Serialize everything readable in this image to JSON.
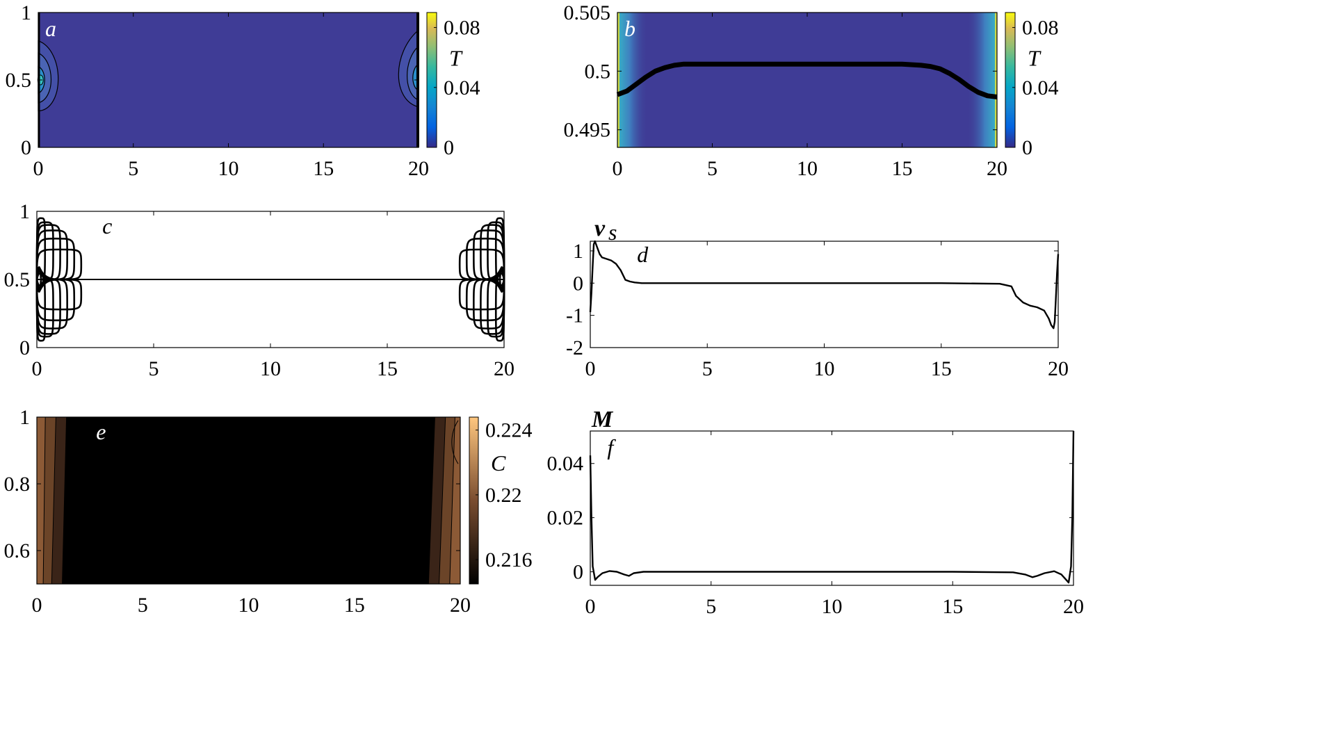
{
  "chart_data": [
    {
      "panel": "a",
      "type": "heatmap",
      "xlim": [
        0,
        20
      ],
      "ylim": [
        0,
        1
      ],
      "xticks": [
        0,
        5,
        10,
        15,
        20
      ],
      "yticks": [
        0,
        0.5,
        1
      ],
      "colorbar": {
        "label": "T",
        "ticks": [
          0,
          0.04,
          0.08
        ],
        "range": [
          0,
          0.09
        ]
      },
      "colors": {
        "background": "#3f3c96",
        "contour": "#000000"
      }
    },
    {
      "panel": "b",
      "type": "heatmap",
      "xlim": [
        0,
        20
      ],
      "ylim": [
        0.4935,
        0.505
      ],
      "xticks": [
        0,
        5,
        10,
        15,
        20
      ],
      "yticks": [
        0.495,
        0.5,
        0.505
      ],
      "ytick_labels": [
        "0.495",
        "0.5",
        "0.505"
      ],
      "colorbar": {
        "label": "T",
        "ticks": [
          0,
          0.04,
          0.08
        ],
        "range": [
          0,
          0.09
        ]
      },
      "curve": {
        "x": [
          0,
          0.5,
          1,
          1.5,
          2,
          2.5,
          3,
          3.5,
          4,
          5,
          6,
          8,
          10,
          12,
          14,
          15,
          16,
          16.5,
          17,
          17.5,
          18,
          18.5,
          19,
          19.5,
          20
        ],
        "y": [
          0.498,
          0.4983,
          0.4989,
          0.4995,
          0.5,
          0.5003,
          0.5005,
          0.5006,
          0.5006,
          0.5006,
          0.5006,
          0.5006,
          0.5006,
          0.5006,
          0.5006,
          0.5006,
          0.5005,
          0.5004,
          0.5002,
          0.4998,
          0.4993,
          0.4987,
          0.4982,
          0.4979,
          0.4978
        ]
      },
      "colors": {
        "background": "#3f3c96",
        "edge": "#34b2c8",
        "curve": "#000000"
      }
    },
    {
      "panel": "c",
      "type": "line",
      "xlim": [
        0,
        20
      ],
      "ylim": [
        0,
        1
      ],
      "xticks": [
        0,
        5,
        10,
        15,
        20
      ],
      "yticks": [
        0,
        0.5,
        1
      ],
      "vortex_loops": [
        0.35,
        0.7,
        1.0,
        1.3,
        1.6,
        1.9
      ],
      "vortex_heights": [
        0.45,
        0.42,
        0.4,
        0.36,
        0.3,
        0.22
      ]
    },
    {
      "panel": "d",
      "type": "line",
      "ylabel": "v",
      "ylabel_sub": "s",
      "xlim": [
        0,
        20
      ],
      "ylim": [
        -2,
        1.3
      ],
      "xticks": [
        0,
        5,
        10,
        15,
        20
      ],
      "yticks": [
        -2,
        -1,
        0,
        1
      ],
      "x": [
        0,
        0.05,
        0.1,
        0.15,
        0.2,
        0.3,
        0.4,
        0.5,
        0.7,
        0.9,
        1.1,
        1.3,
        1.5,
        1.7,
        1.9,
        2.2,
        3,
        5,
        10,
        15,
        17.5,
        18,
        18.2,
        18.5,
        18.8,
        19.1,
        19.4,
        19.6,
        19.7,
        19.8,
        19.85,
        19.9,
        19.95,
        20
      ],
      "y": [
        -0.9,
        -0.3,
        0.5,
        1.2,
        1.3,
        1.1,
        0.9,
        0.8,
        0.75,
        0.7,
        0.6,
        0.4,
        0.1,
        0.05,
        0.02,
        0.0,
        0.0,
        0.0,
        0.0,
        0.0,
        -0.02,
        -0.1,
        -0.4,
        -0.6,
        -0.7,
        -0.75,
        -0.85,
        -1.1,
        -1.3,
        -1.4,
        -1.2,
        -0.5,
        0.3,
        0.9
      ]
    },
    {
      "panel": "e",
      "type": "heatmap",
      "xlim": [
        0,
        20
      ],
      "ylim": [
        0.5,
        1
      ],
      "xticks": [
        0,
        5,
        10,
        15,
        20
      ],
      "yticks": [
        0.6,
        0.8,
        1
      ],
      "colorbar": {
        "label": "C",
        "ticks": [
          0.216,
          0.22,
          0.224
        ],
        "range": [
          0.2145,
          0.2248
        ]
      },
      "colors": {
        "background": "#000000",
        "band_dark": "#3a2418",
        "band_mid": "#6b4428",
        "band_light": "#8c5a36"
      }
    },
    {
      "panel": "f",
      "type": "line",
      "ylabel": "M",
      "xlim": [
        0,
        20
      ],
      "ylim": [
        -0.005,
        0.052
      ],
      "xticks": [
        0,
        5,
        10,
        15,
        20
      ],
      "yticks": [
        0,
        0.02,
        0.04
      ],
      "x": [
        0,
        0.05,
        0.1,
        0.2,
        0.3,
        0.5,
        0.8,
        1.1,
        1.4,
        1.6,
        1.8,
        2.2,
        3,
        5,
        10,
        15,
        17.5,
        18,
        18.3,
        18.5,
        18.8,
        19.2,
        19.5,
        19.7,
        19.8,
        19.9,
        19.95,
        20
      ],
      "y": [
        0.043,
        0.02,
        0.002,
        -0.003,
        -0.002,
        -0.0005,
        0.0003,
        0.0,
        -0.001,
        -0.0015,
        -0.0005,
        0.0,
        0.0,
        0.0,
        0.0,
        0.0,
        -0.0002,
        -0.001,
        -0.002,
        -0.0015,
        -0.0005,
        0.0002,
        -0.001,
        -0.003,
        -0.004,
        0.002,
        0.02,
        0.052
      ]
    }
  ],
  "panel_labels": [
    "a",
    "b",
    "c",
    "d",
    "e",
    "f"
  ]
}
